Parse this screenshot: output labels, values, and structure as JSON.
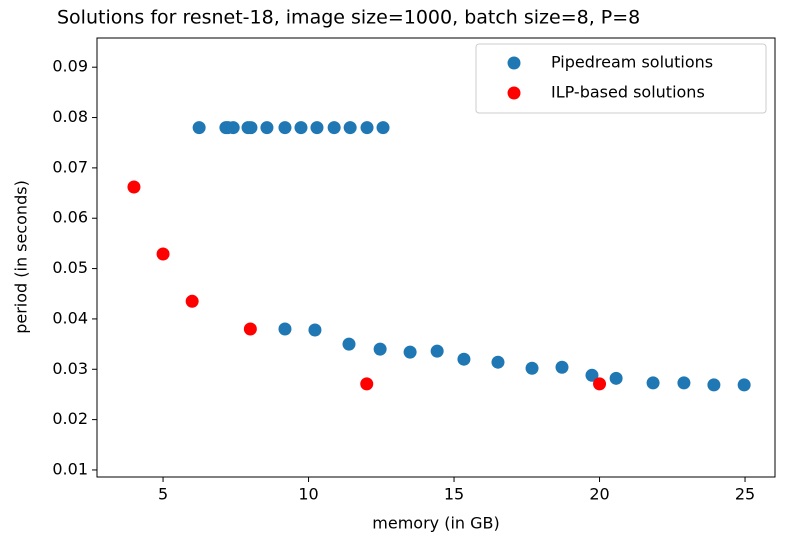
{
  "chart_data": {
    "type": "scatter",
    "title": "Solutions for resnet-18, image size=1000, batch size=8, P=8",
    "xlabel": "memory (in GB)",
    "ylabel": "period (in seconds)",
    "xlim": [
      2.73,
      26.03
    ],
    "xticks": [
      5,
      10,
      15,
      20,
      25
    ],
    "ylim": [
      0.0086,
      0.0958
    ],
    "yticks": [
      0.01,
      0.02,
      0.03,
      0.04,
      0.05,
      0.06,
      0.07,
      0.08,
      0.09
    ],
    "legend": "upper right",
    "series": [
      {
        "name": "Pipedream solutions",
        "color": "#1f77b4",
        "x": [
          6.24,
          7.16,
          7.23,
          7.41,
          7.92,
          8.02,
          8.57,
          9.19,
          9.74,
          10.29,
          10.88,
          11.43,
          12.01,
          12.56,
          9.19,
          10.22,
          11.39,
          12.46,
          13.49,
          14.42,
          15.34,
          16.51,
          17.68,
          18.71,
          19.74,
          20.57,
          21.84,
          22.9,
          23.93,
          24.97
        ],
        "values": [
          0.078,
          0.078,
          0.078,
          0.078,
          0.078,
          0.078,
          0.078,
          0.078,
          0.078,
          0.078,
          0.078,
          0.078,
          0.078,
          0.078,
          0.038,
          0.0378,
          0.035,
          0.034,
          0.0334,
          0.0336,
          0.032,
          0.0314,
          0.0302,
          0.0304,
          0.0288,
          0.0282,
          0.0273,
          0.0273,
          0.0269,
          0.0269
        ]
      },
      {
        "name": "ILP-based solutions",
        "color": "#ff0000",
        "x": [
          4,
          5,
          6,
          8,
          12,
          20
        ],
        "values": [
          0.0662,
          0.0529,
          0.0435,
          0.038,
          0.0271,
          0.0271
        ]
      }
    ]
  }
}
